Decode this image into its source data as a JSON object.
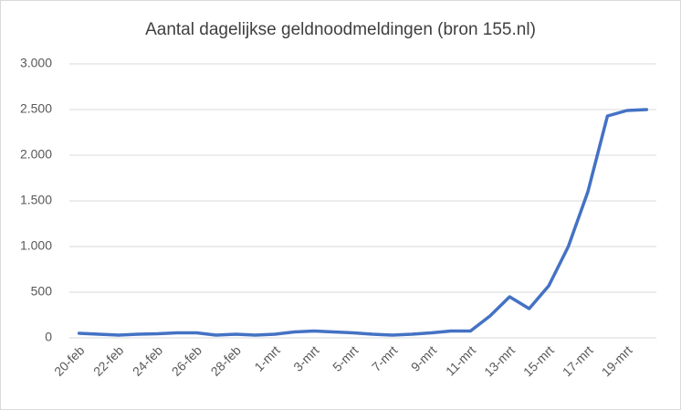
{
  "chart_data": {
    "type": "line",
    "title": "Aantal dagelijkse geldnoodmeldingen (bron 155.nl)",
    "categories": [
      "20-feb",
      null,
      "22-feb",
      null,
      "24-feb",
      null,
      "26-feb",
      null,
      "28-feb",
      null,
      "1-mrt",
      null,
      "3-mrt",
      null,
      "5-mrt",
      null,
      "7-mrt",
      null,
      "9-mrt",
      null,
      "11-mrt",
      null,
      "13-mrt",
      null,
      "15-mrt",
      null,
      "17-mrt",
      null,
      "19-mrt",
      null
    ],
    "values": [
      50,
      40,
      30,
      40,
      45,
      55,
      55,
      30,
      40,
      30,
      40,
      65,
      75,
      65,
      55,
      40,
      30,
      40,
      55,
      75,
      75,
      240,
      450,
      320,
      570,
      1000,
      1600,
      2430,
      2490,
      2500
    ],
    "color": "#4472c4",
    "ylim": [
      0,
      3000
    ],
    "yticks": [
      0,
      500,
      {
        "value": 1000,
        "label": "1.000"
      },
      {
        "value": 1500,
        "label": "1.500"
      },
      {
        "value": 2000,
        "label": "2.000"
      },
      {
        "value": 2500,
        "label": "2.500"
      },
      {
        "value": 3000,
        "label": "3.000"
      }
    ],
    "grid": true
  }
}
